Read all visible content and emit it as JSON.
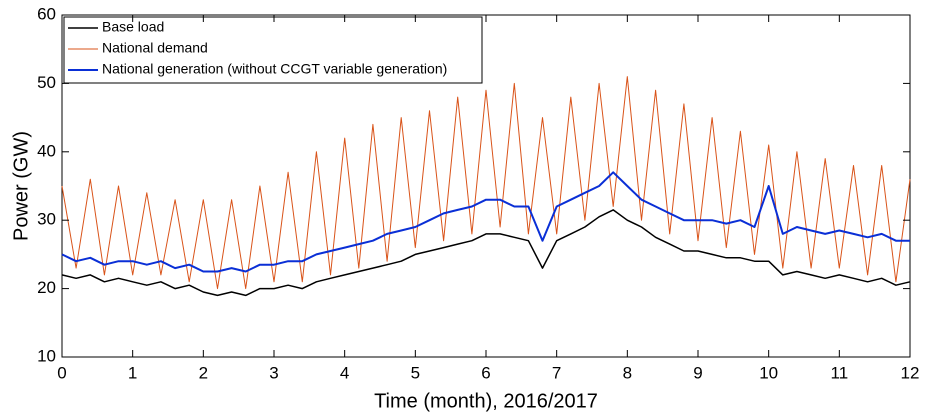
{
  "chart_data": {
    "type": "line",
    "x_label": "Time (month), 2016/2017",
    "y_label": "Power (GW)",
    "xlim": [
      0,
      12
    ],
    "xticks": [
      0,
      1,
      2,
      3,
      4,
      5,
      6,
      7,
      8,
      9,
      10,
      11,
      12
    ],
    "ylim": [
      10,
      60
    ],
    "yticks": [
      10,
      20,
      30,
      40,
      50,
      60
    ],
    "legend": "upper left",
    "x": [
      0,
      0.2,
      0.4,
      0.6,
      0.8,
      1,
      1.2,
      1.4,
      1.6,
      1.8,
      2,
      2.2,
      2.4,
      2.6,
      2.8,
      3,
      3.2,
      3.4,
      3.6,
      3.8,
      4,
      4.2,
      4.4,
      4.6,
      4.8,
      5,
      5.2,
      5.4,
      5.6,
      5.8,
      6,
      6.2,
      6.4,
      6.6,
      6.8,
      7,
      7.2,
      7.4,
      7.6,
      7.8,
      8,
      8.2,
      8.4,
      8.6,
      8.8,
      9,
      9.2,
      9.4,
      9.6,
      9.8,
      10,
      10.2,
      10.4,
      10.6,
      10.8,
      11,
      11.2,
      11.4,
      11.6,
      11.8,
      12
    ],
    "series": [
      {
        "name": "Base load",
        "color": "#000000",
        "width": 1.5,
        "values": [
          22,
          21.5,
          22,
          21,
          21.5,
          21,
          20.5,
          21,
          20,
          20.5,
          19.5,
          19,
          19.5,
          19,
          20,
          20,
          20.5,
          20,
          21,
          21.5,
          22,
          22.5,
          23,
          23.5,
          24,
          25,
          25.5,
          26,
          26.5,
          27,
          28,
          28,
          27.5,
          27,
          23,
          27,
          28,
          29,
          30.5,
          31.5,
          30,
          29,
          27.5,
          26.5,
          25.5,
          25.5,
          25,
          24.5,
          24.5,
          24,
          24,
          22,
          22.5,
          22,
          21.5,
          22,
          21.5,
          21,
          21.5,
          20.5,
          21
        ]
      },
      {
        "name": "National demand",
        "color": "#d95319",
        "width": 1,
        "values": [
          35,
          23,
          36,
          22,
          35,
          22,
          34,
          22,
          33,
          21,
          33,
          20,
          33,
          20,
          35,
          21,
          37,
          21,
          40,
          22,
          42,
          23,
          44,
          24,
          45,
          26,
          46,
          27,
          48,
          28,
          49,
          29,
          50,
          28,
          45,
          28,
          48,
          30,
          50,
          32,
          51,
          30,
          49,
          28,
          47,
          27,
          45,
          26,
          43,
          25,
          41,
          23,
          40,
          23,
          39,
          23,
          38,
          22,
          38,
          21,
          36
        ]
      },
      {
        "name": "National generation (without CCGT variable generation)",
        "color": "#0a2fd6",
        "width": 2,
        "values": [
          25,
          24,
          24.5,
          23.5,
          24,
          24,
          23.5,
          24,
          23,
          23.5,
          22.5,
          22.5,
          23,
          22.5,
          23.5,
          23.5,
          24,
          24,
          25,
          25.5,
          26,
          26.5,
          27,
          28,
          28.5,
          29,
          30,
          31,
          31.5,
          32,
          33,
          33,
          32,
          32,
          27,
          32,
          33,
          34,
          35,
          37,
          35,
          33,
          32,
          31,
          30,
          30,
          30,
          29.5,
          30,
          29,
          35,
          28,
          29,
          28.5,
          28,
          28.5,
          28,
          27.5,
          28,
          27,
          27
        ]
      }
    ]
  }
}
